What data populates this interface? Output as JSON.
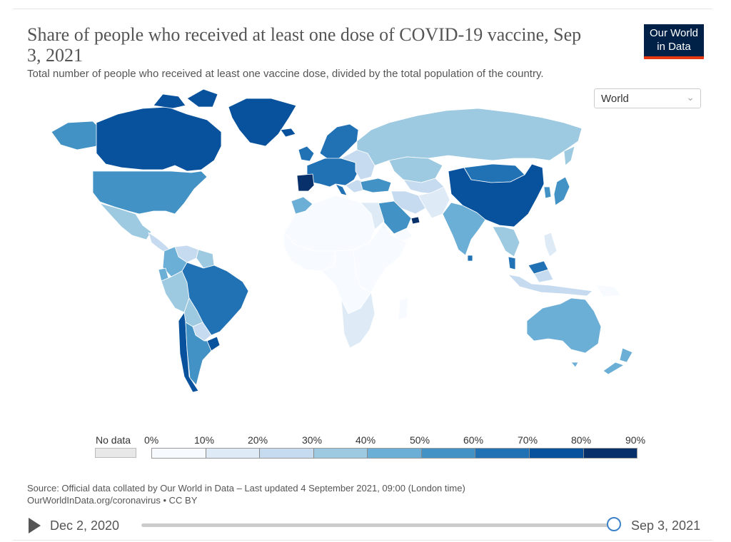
{
  "title": "Share of people who received at least one dose of COVID-19 vaccine, Sep 3, 2021",
  "subtitle": "Total number of people who received at least one vaccine dose, divided by the total population of the country.",
  "logo": {
    "line1": "Our World",
    "line2": "in Data"
  },
  "region_selector": {
    "value": "World",
    "options": [
      "World"
    ]
  },
  "legend": {
    "no_data_label": "No data",
    "ticks": [
      "0%",
      "10%",
      "20%",
      "30%",
      "40%",
      "50%",
      "60%",
      "70%",
      "80%",
      "90%"
    ],
    "colors": [
      "#f7fbff",
      "#deebf7",
      "#c6dbef",
      "#9ecae1",
      "#6baed6",
      "#4292c6",
      "#2171b5",
      "#08519c",
      "#08306b"
    ],
    "no_data_color": "#e8e8e8"
  },
  "source": {
    "line1": "Source: Official data collated by Our World in Data – Last updated 4 September 2021, 09:00 (London time)",
    "line2": "OurWorldInData.org/coronavirus • CC BY"
  },
  "timeline": {
    "start_label": "Dec 2, 2020",
    "end_label": "Sep 3, 2021",
    "position": 1.0
  },
  "regions": [
    {
      "name": "Canada",
      "bin": 7
    },
    {
      "name": "Greenland",
      "bin": 7
    },
    {
      "name": "United States",
      "bin": 5
    },
    {
      "name": "Alaska",
      "bin": 5
    },
    {
      "name": "Mexico",
      "bin": 3
    },
    {
      "name": "Central America",
      "bin": 2
    },
    {
      "name": "Colombia",
      "bin": 4
    },
    {
      "name": "Venezuela",
      "bin": 2
    },
    {
      "name": "Guianas",
      "bin": 3
    },
    {
      "name": "Ecuador",
      "bin": 4
    },
    {
      "name": "Peru",
      "bin": 3
    },
    {
      "name": "Brazil",
      "bin": 6
    },
    {
      "name": "Bolivia",
      "bin": 3
    },
    {
      "name": "Paraguay",
      "bin": 2
    },
    {
      "name": "Chile",
      "bin": 7
    },
    {
      "name": "Argentina",
      "bin": 5
    },
    {
      "name": "Uruguay",
      "bin": 7
    },
    {
      "name": "Iceland",
      "bin": 7
    },
    {
      "name": "Western Europe",
      "bin": 6
    },
    {
      "name": "Spain and Portugal",
      "bin": 8
    },
    {
      "name": "Scandinavia",
      "bin": 6
    },
    {
      "name": "Eastern Europe",
      "bin": 2
    },
    {
      "name": "Russia",
      "bin": 3
    },
    {
      "name": "Kazakhstan",
      "bin": 3
    },
    {
      "name": "Central Asia",
      "bin": 2
    },
    {
      "name": "Turkey",
      "bin": 5
    },
    {
      "name": "Iran",
      "bin": 2
    },
    {
      "name": "Saudi Arabia",
      "bin": 5
    },
    {
      "name": "UAE",
      "bin": 8
    },
    {
      "name": "Yemen",
      "bin": 0
    },
    {
      "name": "Afghanistan and Pakistan",
      "bin": 1
    },
    {
      "name": "India",
      "bin": 4
    },
    {
      "name": "Sri Lanka",
      "bin": 6
    },
    {
      "name": "Mongolia",
      "bin": 6
    },
    {
      "name": "China",
      "bin": 7
    },
    {
      "name": "Japan",
      "bin": 5
    },
    {
      "name": "South Korea",
      "bin": 5
    },
    {
      "name": "Southeast Asia",
      "bin": 3
    },
    {
      "name": "Malaysia",
      "bin": 6
    },
    {
      "name": "Indonesia",
      "bin": 2
    },
    {
      "name": "Philippines",
      "bin": 1
    },
    {
      "name": "Papua New Guinea",
      "bin": 0
    },
    {
      "name": "Australia",
      "bin": 4
    },
    {
      "name": "New Zealand",
      "bin": 4
    },
    {
      "name": "North Africa",
      "bin": 0
    },
    {
      "name": "Morocco",
      "bin": 4
    },
    {
      "name": "Egypt",
      "bin": 1
    },
    {
      "name": "West Africa",
      "bin": 0
    },
    {
      "name": "Central Africa",
      "bin": 0
    },
    {
      "name": "East Africa",
      "bin": 0
    },
    {
      "name": "Southern Africa",
      "bin": 1
    },
    {
      "name": "Madagascar",
      "bin": 0
    }
  ]
}
